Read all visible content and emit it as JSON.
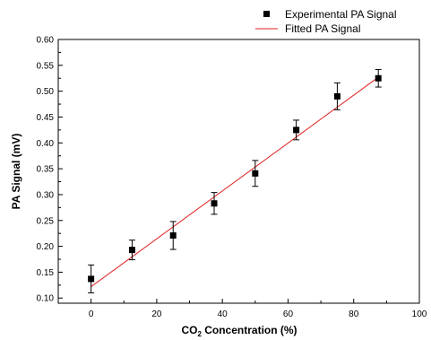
{
  "chart_data": {
    "type": "scatter",
    "title": "",
    "xlabel": {
      "pre": "CO",
      "sub": "2",
      "post": " Concentration (%)"
    },
    "ylabel": "PA Signal (mV)",
    "xlim": [
      -10,
      100
    ],
    "ylim": [
      0.09,
      0.6
    ],
    "x_ticks": [
      0,
      20,
      40,
      60,
      80,
      100
    ],
    "x_tick_labels": [
      "0",
      "20",
      "40",
      "60",
      "80",
      "100"
    ],
    "y_ticks": [
      0.1,
      0.15,
      0.2,
      0.25,
      0.3,
      0.35,
      0.4,
      0.45,
      0.5,
      0.55,
      0.6
    ],
    "y_tick_labels": [
      "0.10",
      "0.15",
      "0.20",
      "0.25",
      "0.30",
      "0.35",
      "0.40",
      "0.45",
      "0.50",
      "0.55",
      "0.60"
    ],
    "grid": false,
    "legend_position": "top-right, above plot",
    "series": [
      {
        "name": "Experimental PA Signal",
        "kind": "points-with-errorbars",
        "color": "#000000",
        "x": [
          0,
          12.5,
          25,
          37.5,
          50,
          62.5,
          75,
          87.5
        ],
        "y": [
          0.137,
          0.193,
          0.221,
          0.283,
          0.341,
          0.425,
          0.49,
          0.525
        ],
        "err": [
          0.027,
          0.019,
          0.027,
          0.021,
          0.025,
          0.019,
          0.026,
          0.017
        ]
      },
      {
        "name": "Fitted PA Signal",
        "kind": "line",
        "color": "#e02020",
        "x": [
          0,
          87.5
        ],
        "y": [
          0.122,
          0.527
        ]
      }
    ]
  }
}
